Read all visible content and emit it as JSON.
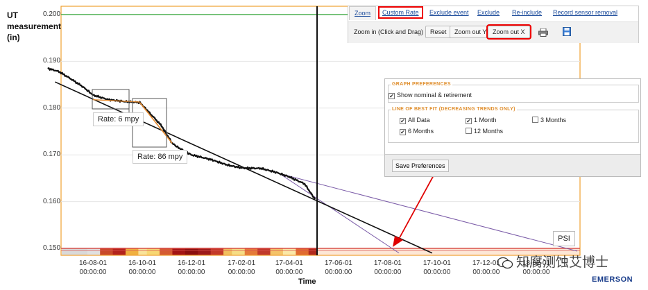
{
  "y_axis_label": "UT\nmeasurement\n(in)",
  "x_axis_label": "Time",
  "y_ticks": [
    "0.200",
    "0.190",
    "0.180",
    "0.170",
    "0.160",
    "0.150"
  ],
  "x_ticks": [
    {
      "date": "16-08-01",
      "time": "00:00:00"
    },
    {
      "date": "16-10-01",
      "time": "00:00:00"
    },
    {
      "date": "16-12-01",
      "time": "00:00:00"
    },
    {
      "date": "17-02-01",
      "time": "00:00:00"
    },
    {
      "date": "17-04-01",
      "time": "00:00:00"
    },
    {
      "date": "17-06-01",
      "time": "00:00:00"
    },
    {
      "date": "17-08-01",
      "time": "00:00:00"
    },
    {
      "date": "17-10-01",
      "time": "00:00:00"
    },
    {
      "date": "17-12-01",
      "time": "00:00:00"
    },
    {
      "date": "18-02-01",
      "time": "00:00:00"
    }
  ],
  "rate_labels": [
    "Rate: 6 mpy",
    "Rate: 86 mpy"
  ],
  "toolbar": {
    "tabs": [
      "Zoom",
      "Custom Rate",
      "Exclude event",
      "Exclude",
      "Re-include",
      "Record sensor removal"
    ],
    "zoom_label": "Zoom in (Click and Drag)",
    "buttons": [
      "Reset",
      "Zoom out Y",
      "Zoom out X"
    ],
    "print_icon": "printer-icon",
    "save_icon": "floppy-disk-icon"
  },
  "prefs": {
    "title": "GRAPH PREFERENCES",
    "show_nominal": {
      "label": "Show nominal & retirement",
      "checked": true
    },
    "bestfit_title": "LINE OF BEST FIT (DECREASING TRENDS ONLY)",
    "options": [
      {
        "label": "All Data",
        "checked": true
      },
      {
        "label": "1 Month",
        "checked": true
      },
      {
        "label": "3 Months",
        "checked": false
      },
      {
        "label": "6 Months",
        "checked": true
      },
      {
        "label": "12 Months",
        "checked": false
      }
    ],
    "save_label": "Save Preferences"
  },
  "psi_label": "PSI",
  "watermark": "知腐测蚀艾博士",
  "brand": "EMERSON",
  "colors": {
    "nominal_line": "#4caf50",
    "retirement_line": "#d9534f",
    "plot_border": "#f0a030",
    "data_line": "#111111",
    "custom_rate_line": "#e68a2e",
    "fit_line": "#7b5ca8",
    "annotation_red": "#e00000"
  },
  "chart_data": {
    "type": "line",
    "ylim": [
      0.149,
      0.202
    ],
    "nominal": 0.2,
    "retirement": 0.15,
    "series": [
      {
        "values": [
          {
            "x": "16-06-06",
            "y": 0.1885
          },
          {
            "x": "16-06-20",
            "y": 0.1878
          },
          {
            "x": "16-07-05",
            "y": 0.1862
          },
          {
            "x": "16-07-20",
            "y": 0.1845
          },
          {
            "x": "16-08-01",
            "y": 0.1828
          },
          {
            "x": "16-08-20",
            "y": 0.1818
          },
          {
            "x": "16-09-10",
            "y": 0.1814
          },
          {
            "x": "16-09-28",
            "y": 0.1812
          },
          {
            "x": "16-10-10",
            "y": 0.179
          },
          {
            "x": "16-10-25",
            "y": 0.1762
          },
          {
            "x": "16-11-07",
            "y": 0.1725
          },
          {
            "x": "16-11-15",
            "y": 0.1715
          },
          {
            "x": "16-12-01",
            "y": 0.17
          },
          {
            "x": "16-12-25",
            "y": 0.169
          },
          {
            "x": "17-01-15",
            "y": 0.1678
          },
          {
            "x": "17-02-01",
            "y": 0.1672
          },
          {
            "x": "17-02-25",
            "y": 0.1671
          },
          {
            "x": "17-03-15",
            "y": 0.1663
          },
          {
            "x": "17-04-01",
            "y": 0.1653
          },
          {
            "x": "17-04-20",
            "y": 0.1638
          },
          {
            "x": "17-05-03",
            "y": 0.1605
          }
        ]
      }
    ]
  }
}
